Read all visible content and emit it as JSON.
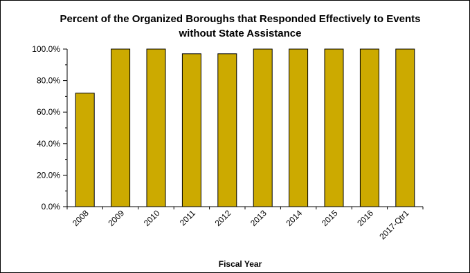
{
  "chart_data": {
    "type": "bar",
    "title_lines": [
      "Percent of the Organized Boroughs that Responded Effectively to Events",
      "without State Assistance"
    ],
    "xlabel": "Fiscal Year",
    "ylabel": "",
    "categories": [
      "2008",
      "2009",
      "2010",
      "2011",
      "2012",
      "2013",
      "2014",
      "2015",
      "2016",
      "2017-Qtr1"
    ],
    "values": [
      72.0,
      100.0,
      100.0,
      97.0,
      97.0,
      100.0,
      100.0,
      100.0,
      100.0,
      100.0
    ],
    "ylim": [
      0,
      100
    ],
    "y_ticks": [
      0,
      20,
      40,
      60,
      80,
      100
    ],
    "y_tick_labels": [
      "0.0%",
      "20.0%",
      "40.0%",
      "60.0%",
      "80.0%",
      "100.0%"
    ],
    "grid": false,
    "legend": "none",
    "colors": {
      "bar": "#ccaa00",
      "bar_edge": "#000000",
      "axis": "#000000"
    }
  }
}
